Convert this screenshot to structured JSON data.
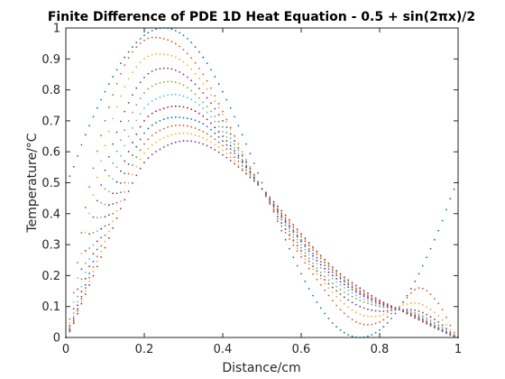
{
  "chart_data": {
    "type": "scatter",
    "title": "Finite Difference of PDE 1D Heat Equation - 0.5 + sin(2πx)/2",
    "xlabel": "Distance/cm",
    "ylabel": "Temperature/°C",
    "xlim": [
      0,
      1
    ],
    "ylim": [
      0,
      1
    ],
    "xticks": [
      "0",
      "0.2",
      "0.4",
      "0.6",
      "0.8",
      "1"
    ],
    "yticks": [
      "0",
      "0.1",
      "0.2",
      "0.3",
      "0.4",
      "0.5",
      "0.6",
      "0.7",
      "0.8",
      "0.9",
      "1"
    ],
    "grid": false,
    "legend": "none",
    "x": [
      0,
      0.05,
      0.1,
      0.15,
      0.2,
      0.25,
      0.3,
      0.35,
      0.4,
      0.45,
      0.5,
      0.55,
      0.6,
      0.65,
      0.7,
      0.75,
      0.8,
      0.85,
      0.9,
      0.95,
      1
    ],
    "series": [
      {
        "color": "#0072bd",
        "values": [
          0.5,
          0.655,
          0.794,
          0.905,
          0.976,
          1.0,
          0.976,
          0.905,
          0.794,
          0.655,
          0.5,
          0.345,
          0.206,
          0.095,
          0.024,
          0.0,
          0.024,
          0.095,
          0.206,
          0.345,
          0.5
        ]
      },
      {
        "color": "#d95319",
        "values": [
          0.0,
          0.42,
          0.7,
          0.88,
          0.96,
          0.965,
          0.93,
          0.85,
          0.73,
          0.6,
          0.48,
          0.36,
          0.26,
          0.17,
          0.09,
          0.045,
          0.05,
          0.1,
          0.16,
          0.11,
          0.0
        ]
      },
      {
        "color": "#edb120",
        "values": [
          0.0,
          0.34,
          0.62,
          0.81,
          0.9,
          0.915,
          0.89,
          0.82,
          0.72,
          0.6,
          0.48,
          0.37,
          0.27,
          0.19,
          0.12,
          0.075,
          0.07,
          0.1,
          0.11,
          0.07,
          0.0
        ]
      },
      {
        "color": "#7e2f8e",
        "values": [
          0.0,
          0.28,
          0.54,
          0.73,
          0.84,
          0.87,
          0.85,
          0.79,
          0.7,
          0.59,
          0.48,
          0.37,
          0.28,
          0.2,
          0.14,
          0.1,
          0.085,
          0.09,
          0.085,
          0.05,
          0.0
        ]
      },
      {
        "color": "#77ac30",
        "values": [
          0.0,
          0.24,
          0.48,
          0.67,
          0.79,
          0.825,
          0.815,
          0.76,
          0.68,
          0.585,
          0.48,
          0.38,
          0.29,
          0.21,
          0.155,
          0.12,
          0.1,
          0.09,
          0.075,
          0.04,
          0.0
        ]
      },
      {
        "color": "#4dbeee",
        "values": [
          0.0,
          0.21,
          0.43,
          0.62,
          0.74,
          0.78,
          0.78,
          0.74,
          0.665,
          0.575,
          0.48,
          0.385,
          0.3,
          0.225,
          0.17,
          0.13,
          0.105,
          0.09,
          0.07,
          0.035,
          0.0
        ]
      },
      {
        "color": "#a2142f",
        "values": [
          0.0,
          0.19,
          0.39,
          0.57,
          0.7,
          0.74,
          0.745,
          0.715,
          0.65,
          0.57,
          0.48,
          0.39,
          0.31,
          0.235,
          0.18,
          0.14,
          0.11,
          0.09,
          0.065,
          0.03,
          0.0
        ]
      },
      {
        "color": "#0072bd",
        "values": [
          0.0,
          0.17,
          0.36,
          0.53,
          0.66,
          0.705,
          0.71,
          0.69,
          0.635,
          0.565,
          0.48,
          0.395,
          0.315,
          0.245,
          0.19,
          0.145,
          0.115,
          0.09,
          0.06,
          0.03,
          0.0
        ]
      },
      {
        "color": "#d95319",
        "values": [
          0.0,
          0.16,
          0.33,
          0.5,
          0.625,
          0.675,
          0.685,
          0.665,
          0.62,
          0.555,
          0.48,
          0.4,
          0.325,
          0.255,
          0.195,
          0.15,
          0.115,
          0.09,
          0.06,
          0.028,
          0.0
        ]
      },
      {
        "color": "#edb120",
        "values": [
          0.0,
          0.15,
          0.31,
          0.47,
          0.595,
          0.645,
          0.66,
          0.645,
          0.605,
          0.545,
          0.48,
          0.405,
          0.33,
          0.26,
          0.2,
          0.155,
          0.12,
          0.09,
          0.058,
          0.027,
          0.0
        ]
      },
      {
        "color": "#7e2f8e",
        "values": [
          0.0,
          0.14,
          0.29,
          0.445,
          0.565,
          0.615,
          0.635,
          0.625,
          0.59,
          0.54,
          0.48,
          0.41,
          0.335,
          0.265,
          0.205,
          0.16,
          0.12,
          0.09,
          0.057,
          0.026,
          0.0
        ]
      }
    ]
  }
}
